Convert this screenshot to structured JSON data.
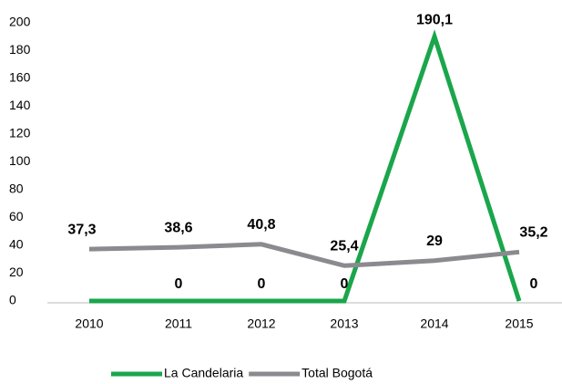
{
  "chart_data": {
    "type": "line",
    "categories": [
      "2010",
      "2011",
      "2012",
      "2013",
      "2014",
      "2015"
    ],
    "series": [
      {
        "name": "La Candelaria",
        "color": "#1aa64b",
        "values": [
          0,
          0,
          0,
          0,
          190.1,
          0
        ],
        "value_labels": [
          null,
          "0",
          "0",
          "0",
          "190,1",
          "0"
        ]
      },
      {
        "name": "Total Bogotá",
        "color": "#8a8a8f",
        "values": [
          37.3,
          38.6,
          40.8,
          25.4,
          29,
          35.2
        ],
        "value_labels": [
          "37,3",
          "38,6",
          "40,8",
          "25,4",
          "29",
          "35,2"
        ]
      }
    ],
    "ylim": [
      0,
      200
    ],
    "yticks": [
      0,
      20,
      40,
      60,
      80,
      100,
      120,
      140,
      160,
      180,
      200
    ],
    "grid": false,
    "legend": "bottom"
  }
}
